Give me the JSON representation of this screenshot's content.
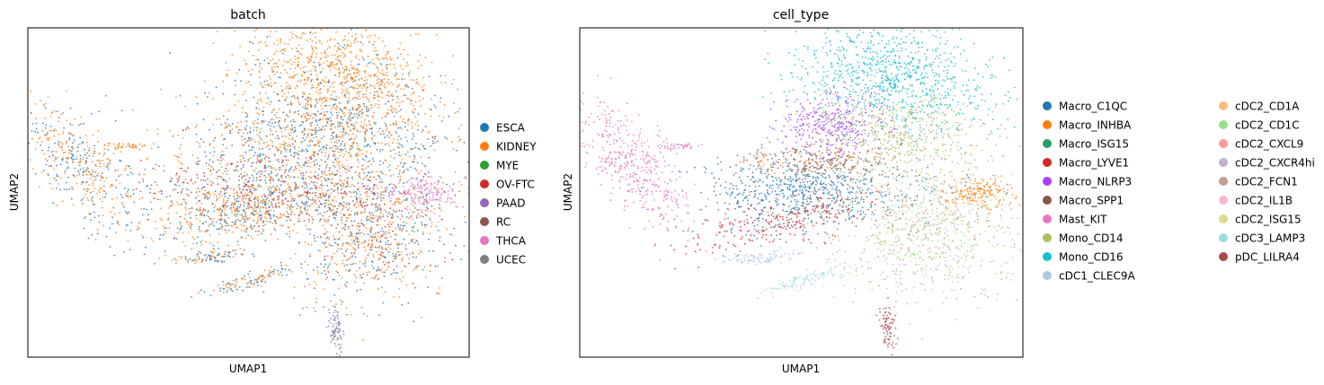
{
  "chart_data": [
    {
      "type": "scatter",
      "title": "batch",
      "xlabel": "UMAP1",
      "ylabel": "UMAP2",
      "grid": false,
      "legend_position": "right",
      "legend": [
        {
          "label": "ESCA",
          "color": "#1f77b4"
        },
        {
          "label": "KIDNEY",
          "color": "#ff7f0e"
        },
        {
          "label": "MYE",
          "color": "#2ca02c"
        },
        {
          "label": "OV-FTC",
          "color": "#d62728"
        },
        {
          "label": "PAAD",
          "color": "#9467bd"
        },
        {
          "label": "RC",
          "color": "#8c564b"
        },
        {
          "label": "THCA",
          "color": "#e377c2"
        },
        {
          "label": "UCEC",
          "color": "#7f7f7f"
        }
      ]
    },
    {
      "type": "scatter",
      "title": "cell_type",
      "xlabel": "UMAP1",
      "ylabel": "UMAP2",
      "grid": false,
      "legend_position": "right",
      "legend": [
        {
          "label": "Macro_C1QC",
          "color": "#1f77b4"
        },
        {
          "label": "Macro_INHBA",
          "color": "#ff7f0e"
        },
        {
          "label": "Macro_ISG15",
          "color": "#279e68"
        },
        {
          "label": "Macro_LYVE1",
          "color": "#d62728"
        },
        {
          "label": "Macro_NLRP3",
          "color": "#aa40fc"
        },
        {
          "label": "Macro_SPP1",
          "color": "#8c564b"
        },
        {
          "label": "Mast_KIT",
          "color": "#e377c2"
        },
        {
          "label": "Mono_CD14",
          "color": "#b5bd61"
        },
        {
          "label": "Mono_CD16",
          "color": "#17becf"
        },
        {
          "label": "cDC1_CLEC9A",
          "color": "#aec7e8"
        },
        {
          "label": "cDC2_CD1A",
          "color": "#ffbb78"
        },
        {
          "label": "cDC2_CD1C",
          "color": "#98df8a"
        },
        {
          "label": "cDC2_CXCL9",
          "color": "#ff9896"
        },
        {
          "label": "cDC2_CXCR4hi",
          "color": "#c5b0d5"
        },
        {
          "label": "cDC2_FCN1",
          "color": "#c49c94"
        },
        {
          "label": "cDC2_IL1B",
          "color": "#f7b6d2"
        },
        {
          "label": "cDC2_ISG15",
          "color": "#dbdb8d"
        },
        {
          "label": "cDC3_LAMP3",
          "color": "#9edae5"
        },
        {
          "label": "pDC_LILRA4",
          "color": "#ad494a"
        }
      ]
    }
  ]
}
